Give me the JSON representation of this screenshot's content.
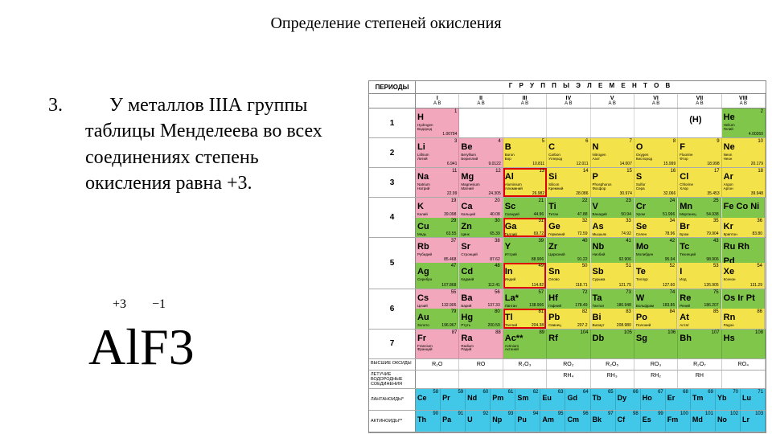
{
  "title": "Определение степеней окисления",
  "item_number": "3.",
  "paragraph": "     У металлов IIIА группы таблицы Менделеева во всех соединениях степень окисления равна +3.",
  "oxid_1": "+3",
  "oxid_2": "−1",
  "formula": "AlF3",
  "pt": {
    "periods_label": "ПЕРИОДЫ",
    "groups_title": "Г  Р  У  П  П  Ы     Э  Л  Е  М  Е  Н  Т  О  В",
    "group_nums": [
      "I",
      "II",
      "III",
      "IV",
      "V",
      "VI",
      "VII",
      "VIII"
    ],
    "sub_ab": "A   B",
    "h_paren": "(H)",
    "colors": {
      "pink": "#f2a7bd",
      "yellow": "#f4e24b",
      "green": "#7fc64a",
      "cyan": "#41c7e8",
      "white": "#ffffff"
    },
    "rows": [
      {
        "period": "1",
        "tall": false,
        "cells": [
          {
            "sym": "H",
            "z": "1",
            "m": "1.00794",
            "nm": "Hydrogen",
            "nm2": "Водород",
            "c": "pink",
            "hl": false
          },
          {
            "blank": true
          },
          {
            "blank": true
          },
          {
            "blank": true
          },
          {
            "blank": true
          },
          {
            "blank": true
          },
          {
            "blank": true,
            "hparen": true
          },
          {
            "sym": "He",
            "z": "2",
            "m": "4.00260",
            "nm": "Helium",
            "nm2": "Гелий",
            "c": "green",
            "hl": false
          }
        ]
      },
      {
        "period": "2",
        "tall": false,
        "cells": [
          {
            "sym": "Li",
            "z": "3",
            "m": "6.941",
            "nm": "Lithium",
            "nm2": "Литий",
            "c": "pink",
            "hl": false
          },
          {
            "sym": "Be",
            "z": "4",
            "m": "9.0122",
            "nm": "Beryllium",
            "nm2": "Бериллий",
            "c": "pink",
            "hl": false
          },
          {
            "sym": "B",
            "z": "5",
            "m": "10.811",
            "nm": "Boron",
            "nm2": "Бор",
            "c": "yellow",
            "hl": false
          },
          {
            "sym": "C",
            "z": "6",
            "m": "12.011",
            "nm": "Carbon",
            "nm2": "Углерод",
            "c": "yellow",
            "hl": false
          },
          {
            "sym": "N",
            "z": "7",
            "m": "14.007",
            "nm": "Nitrogen",
            "nm2": "Азот",
            "c": "yellow",
            "hl": false
          },
          {
            "sym": "O",
            "z": "8",
            "m": "15.999",
            "nm": "Oxygen",
            "nm2": "Кислород",
            "c": "yellow",
            "hl": false
          },
          {
            "sym": "F",
            "z": "9",
            "m": "18.998",
            "nm": "Fluorine",
            "nm2": "Фтор",
            "c": "yellow",
            "hl": false
          },
          {
            "sym": "Ne",
            "z": "10",
            "m": "20.179",
            "nm": "Neon",
            "nm2": "Неон",
            "c": "yellow",
            "hl": false
          }
        ]
      },
      {
        "period": "3",
        "tall": false,
        "cells": [
          {
            "sym": "Na",
            "z": "11",
            "m": "22.99",
            "nm": "Natrium",
            "nm2": "Натрий",
            "c": "pink",
            "hl": false
          },
          {
            "sym": "Mg",
            "z": "12",
            "m": "24.305",
            "nm": "Magnesium",
            "nm2": "Магний",
            "c": "pink",
            "hl": false
          },
          {
            "sym": "Al",
            "z": "13",
            "m": "26.982",
            "nm": "Aluminium",
            "nm2": "Алюминий",
            "c": "yellow",
            "hl": true
          },
          {
            "sym": "Si",
            "z": "14",
            "m": "28.086",
            "nm": "Silicon",
            "nm2": "Кремний",
            "c": "yellow",
            "hl": false
          },
          {
            "sym": "P",
            "z": "15",
            "m": "30.974",
            "nm": "Phosphorus",
            "nm2": "Фосфор",
            "c": "yellow",
            "hl": false
          },
          {
            "sym": "S",
            "z": "16",
            "m": "32.066",
            "nm": "Sulfur",
            "nm2": "Сера",
            "c": "yellow",
            "hl": false
          },
          {
            "sym": "Cl",
            "z": "17",
            "m": "35.453",
            "nm": "Chlorine",
            "nm2": "Хлор",
            "c": "yellow",
            "hl": false
          },
          {
            "sym": "Ar",
            "z": "18",
            "m": "39.948",
            "nm": "Argon",
            "nm2": "Аргон",
            "c": "yellow",
            "hl": false
          }
        ]
      },
      {
        "period": "4",
        "tall": true,
        "cells": [
          {
            "sym": "K\nCu",
            "z": "19\n29",
            "m": "",
            "nm": "",
            "nm2": "",
            "c": "pink_green",
            "hl": false,
            "split": [
              {
                "sym": "K",
                "z": "19",
                "m": "39.098",
                "nm": "Калий",
                "c": "pink"
              },
              {
                "sym": "Cu",
                "z": "29",
                "m": "63.55",
                "nm": "Медь",
                "c": "green"
              }
            ]
          },
          {
            "split": [
              {
                "sym": "Ca",
                "z": "20",
                "m": "40.08",
                "nm": "Кальций",
                "c": "pink"
              },
              {
                "sym": "Zn",
                "z": "30",
                "m": "65.39",
                "nm": "Цинк",
                "c": "green"
              }
            ]
          },
          {
            "split": [
              {
                "sym": "Sc",
                "z": "21",
                "m": "44.96",
                "nm": "Скандий",
                "c": "green"
              },
              {
                "sym": "Ga",
                "z": "31",
                "m": "69.72",
                "nm": "Галлий",
                "c": "yellow",
                "hl": true
              }
            ]
          },
          {
            "split": [
              {
                "sym": "Ti",
                "z": "22",
                "m": "47.88",
                "nm": "Титан",
                "c": "green"
              },
              {
                "sym": "Ge",
                "z": "32",
                "m": "72.59",
                "nm": "Германий",
                "c": "yellow"
              }
            ]
          },
          {
            "split": [
              {
                "sym": "V",
                "z": "23",
                "m": "50.94",
                "nm": "Ванадий",
                "c": "green"
              },
              {
                "sym": "As",
                "z": "33",
                "m": "74.92",
                "nm": "Мышьяк",
                "c": "yellow"
              }
            ]
          },
          {
            "split": [
              {
                "sym": "Cr",
                "z": "24",
                "m": "51.996",
                "nm": "Хром",
                "c": "green"
              },
              {
                "sym": "Se",
                "z": "34",
                "m": "78.96",
                "nm": "Селен",
                "c": "yellow"
              }
            ]
          },
          {
            "split": [
              {
                "sym": "Mn",
                "z": "25",
                "m": "54.938",
                "nm": "Марганец",
                "c": "green"
              },
              {
                "sym": "Br",
                "z": "35",
                "m": "79.904",
                "nm": "Бром",
                "c": "yellow"
              }
            ]
          },
          {
            "split": [
              {
                "sym": "Fe Co Ni",
                "z": "",
                "m": "",
                "nm": "",
                "c": "green"
              },
              {
                "sym": "Kr",
                "z": "36",
                "m": "83.80",
                "nm": "Криптон",
                "c": "yellow"
              }
            ]
          }
        ]
      },
      {
        "period": "5",
        "tall": true,
        "cells": [
          {
            "split": [
              {
                "sym": "Rb",
                "z": "37",
                "m": "85.468",
                "nm": "Рубидий",
                "c": "pink"
              },
              {
                "sym": "Ag",
                "z": "47",
                "m": "107.868",
                "nm": "Серебро",
                "c": "green"
              }
            ]
          },
          {
            "split": [
              {
                "sym": "Sr",
                "z": "38",
                "m": "87.62",
                "nm": "Стронций",
                "c": "pink"
              },
              {
                "sym": "Cd",
                "z": "48",
                "m": "112.41",
                "nm": "Кадмий",
                "c": "green"
              }
            ]
          },
          {
            "split": [
              {
                "sym": "Y",
                "z": "39",
                "m": "88.906",
                "nm": "Иттрий",
                "c": "green"
              },
              {
                "sym": "In",
                "z": "49",
                "m": "114.82",
                "nm": "Индий",
                "c": "yellow",
                "hl": true
              }
            ]
          },
          {
            "split": [
              {
                "sym": "Zr",
                "z": "40",
                "m": "91.22",
                "nm": "Цирконий",
                "c": "green"
              },
              {
                "sym": "Sn",
                "z": "50",
                "m": "118.71",
                "nm": "Олово",
                "c": "yellow"
              }
            ]
          },
          {
            "split": [
              {
                "sym": "Nb",
                "z": "41",
                "m": "92.906",
                "nm": "Ниобий",
                "c": "green"
              },
              {
                "sym": "Sb",
                "z": "51",
                "m": "121.75",
                "nm": "Сурьма",
                "c": "yellow"
              }
            ]
          },
          {
            "split": [
              {
                "sym": "Mo",
                "z": "42",
                "m": "95.94",
                "nm": "Молибден",
                "c": "green"
              },
              {
                "sym": "Te",
                "z": "52",
                "m": "127.60",
                "nm": "Теллур",
                "c": "yellow"
              }
            ]
          },
          {
            "split": [
              {
                "sym": "Tc",
                "z": "43",
                "m": "98.906",
                "nm": "Технеций",
                "c": "green"
              },
              {
                "sym": "I",
                "z": "53",
                "m": "126.905",
                "nm": "Иод",
                "c": "yellow"
              }
            ]
          },
          {
            "split": [
              {
                "sym": "Ru Rh Pd",
                "z": "",
                "m": "",
                "nm": "",
                "c": "green"
              },
              {
                "sym": "Xe",
                "z": "54",
                "m": "131.29",
                "nm": "Ксенон",
                "c": "yellow"
              }
            ]
          }
        ]
      },
      {
        "period": "6",
        "tall": true,
        "cells": [
          {
            "split": [
              {
                "sym": "Cs",
                "z": "55",
                "m": "132.905",
                "nm": "Цезий",
                "c": "pink"
              },
              {
                "sym": "Au",
                "z": "79",
                "m": "196.967",
                "nm": "Золото",
                "c": "green"
              }
            ]
          },
          {
            "split": [
              {
                "sym": "Ba",
                "z": "56",
                "m": "137.33",
                "nm": "Барий",
                "c": "pink"
              },
              {
                "sym": "Hg",
                "z": "80",
                "m": "200.59",
                "nm": "Ртуть",
                "c": "green"
              }
            ]
          },
          {
            "split": [
              {
                "sym": "La*",
                "z": "57",
                "m": "138.906",
                "nm": "Лантан",
                "c": "green"
              },
              {
                "sym": "Tl",
                "z": "81",
                "m": "204.38",
                "nm": "Таллий",
                "c": "yellow",
                "hl": true
              }
            ]
          },
          {
            "split": [
              {
                "sym": "Hf",
                "z": "72",
                "m": "178.49",
                "nm": "Гафний",
                "c": "green"
              },
              {
                "sym": "Pb",
                "z": "82",
                "m": "207.2",
                "nm": "Свинец",
                "c": "yellow"
              }
            ]
          },
          {
            "split": [
              {
                "sym": "Ta",
                "z": "73",
                "m": "180.948",
                "nm": "Тантал",
                "c": "green"
              },
              {
                "sym": "Bi",
                "z": "83",
                "m": "208.980",
                "nm": "Висмут",
                "c": "yellow"
              }
            ]
          },
          {
            "split": [
              {
                "sym": "W",
                "z": "74",
                "m": "183.85",
                "nm": "Вольфрам",
                "c": "green"
              },
              {
                "sym": "Po",
                "z": "84",
                "m": "",
                "nm": "Полоний",
                "c": "yellow"
              }
            ]
          },
          {
            "split": [
              {
                "sym": "Re",
                "z": "75",
                "m": "186.207",
                "nm": "Рений",
                "c": "green"
              },
              {
                "sym": "At",
                "z": "85",
                "m": "",
                "nm": "Астат",
                "c": "yellow"
              }
            ]
          },
          {
            "split": [
              {
                "sym": "Os Ir Pt",
                "z": "",
                "m": "",
                "nm": "",
                "c": "green"
              },
              {
                "sym": "Rn",
                "z": "86",
                "m": "",
                "nm": "Радон",
                "c": "yellow"
              }
            ]
          }
        ]
      },
      {
        "period": "7",
        "tall": false,
        "cells": [
          {
            "sym": "Fr",
            "z": "87",
            "m": "",
            "nm": "Francium",
            "nm2": "Франций",
            "c": "pink",
            "hl": false
          },
          {
            "sym": "Ra",
            "z": "88",
            "m": "",
            "nm": "Radium",
            "nm2": "Радий",
            "c": "pink",
            "hl": false
          },
          {
            "sym": "Ac**",
            "z": "89",
            "m": "",
            "nm": "Actinium",
            "nm2": "Актиний",
            "c": "green",
            "hl": false
          },
          {
            "sym": "Rf",
            "z": "104",
            "m": "",
            "nm": "",
            "nm2": "",
            "c": "green",
            "hl": false
          },
          {
            "sym": "Db",
            "z": "105",
            "m": "",
            "nm": "",
            "nm2": "",
            "c": "green",
            "hl": false
          },
          {
            "sym": "Sg",
            "z": "106",
            "m": "",
            "nm": "",
            "nm2": "",
            "c": "green",
            "hl": false
          },
          {
            "sym": "Bh",
            "z": "107",
            "m": "",
            "nm": "",
            "nm2": "",
            "c": "green",
            "hl": false
          },
          {
            "sym": "Hs",
            "z": "108",
            "m": "",
            "nm": "",
            "nm2": "",
            "c": "green",
            "hl": false
          }
        ]
      }
    ],
    "oxide_label": "ВЫСШИЕ ОКСИДЫ",
    "oxides": [
      "R₂O",
      "RO",
      "R₂O₃",
      "RO₂",
      "R₂O₅",
      "RO₃",
      "R₂O₇",
      "RO₄"
    ],
    "hydride_label": "ЛЕТУЧИЕ ВОДОРОДНЫЕ СОЕДИНЕНИЯ",
    "hydrides": [
      "",
      "",
      "",
      "RH₄",
      "RH₃",
      "RH₂",
      "RH",
      ""
    ],
    "lan_label": "ЛАНТАНОИДЫ*",
    "lanthanides": [
      {
        "sym": "Ce",
        "z": "58"
      },
      {
        "sym": "Pr",
        "z": "59"
      },
      {
        "sym": "Nd",
        "z": "60"
      },
      {
        "sym": "Pm",
        "z": "61"
      },
      {
        "sym": "Sm",
        "z": "62"
      },
      {
        "sym": "Eu",
        "z": "63"
      },
      {
        "sym": "Gd",
        "z": "64"
      },
      {
        "sym": "Tb",
        "z": "65"
      },
      {
        "sym": "Dy",
        "z": "66"
      },
      {
        "sym": "Ho",
        "z": "67"
      },
      {
        "sym": "Er",
        "z": "68"
      },
      {
        "sym": "Tm",
        "z": "69"
      },
      {
        "sym": "Yb",
        "z": "70"
      },
      {
        "sym": "Lu",
        "z": "71"
      }
    ],
    "act_label": "АКТИНОИДЫ**",
    "actinides": [
      {
        "sym": "Th",
        "z": "90"
      },
      {
        "sym": "Pa",
        "z": "91"
      },
      {
        "sym": "U",
        "z": "92"
      },
      {
        "sym": "Np",
        "z": "93"
      },
      {
        "sym": "Pu",
        "z": "94"
      },
      {
        "sym": "Am",
        "z": "95"
      },
      {
        "sym": "Cm",
        "z": "96"
      },
      {
        "sym": "Bk",
        "z": "97"
      },
      {
        "sym": "Cf",
        "z": "98"
      },
      {
        "sym": "Es",
        "z": "99"
      },
      {
        "sym": "Fm",
        "z": "100"
      },
      {
        "sym": "Md",
        "z": "101"
      },
      {
        "sym": "No",
        "z": "102"
      },
      {
        "sym": "Lr",
        "z": "103"
      }
    ]
  }
}
